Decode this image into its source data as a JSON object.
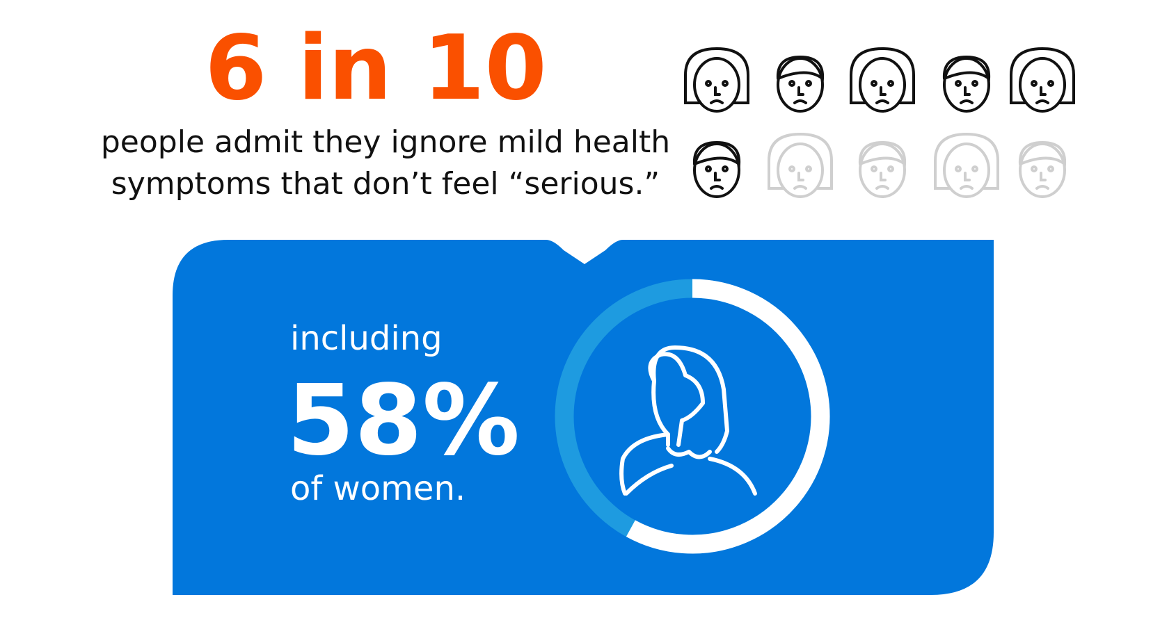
{
  "headline": "6 in 10",
  "subtitle_lines": [
    "people admit they ignore mild health",
    "symptoms that don’t feel “serious.”"
  ],
  "icons": {
    "highlighted": 6,
    "total": 10
  },
  "panel": {
    "intro": "including",
    "stat": {
      "value": 58,
      "label": "58%"
    },
    "outro": "of women."
  }
}
